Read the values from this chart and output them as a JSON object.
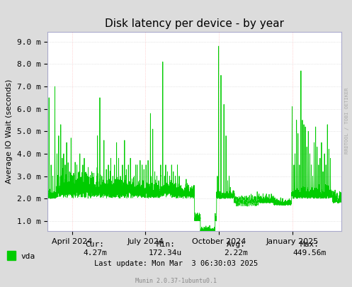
{
  "title": "Disk latency per device - by year",
  "ylabel": "Average IO Wait (seconds)",
  "background_color": "#DCDCDC",
  "plot_bg_color": "#FFFFFF",
  "grid_color_h": "#CCCCCC",
  "grid_color_v": "#FFAAAA",
  "line_color": "#00CC00",
  "yticks": [
    1.0,
    2.0,
    3.0,
    4.0,
    5.0,
    6.0,
    7.0,
    8.0,
    9.0
  ],
  "ytick_labels": [
    "1.0 m",
    "2.0 m",
    "3.0 m",
    "4.0 m",
    "5.0 m",
    "6.0 m",
    "7.0 m",
    "8.0 m",
    "9.0 m"
  ],
  "ylim_lo": 0.55,
  "ylim_hi": 9.45,
  "xtick_labels": [
    "April 2024",
    "July 2024",
    "October 2024",
    "January 2025"
  ],
  "xtick_positions": [
    0.0833,
    0.3333,
    0.5833,
    0.8333
  ],
  "legend_label": "vda",
  "legend_color": "#00CC00",
  "cur_label": "Cur:",
  "cur": "4.27m",
  "min_label": "Min:",
  "min": "172.34u",
  "avg_label": "Avg:",
  "avg": "2.22m",
  "max_label": "Max:",
  "max": "449.56m",
  "last_update": "Last update: Mon Mar  3 06:30:03 2025",
  "rrdtool_text": "RRDTOOL / TOBI OETIKER",
  "munin_text": "Munin 2.0.37-1ubuntu0.1",
  "title_fontsize": 11,
  "axis_fontsize": 8,
  "legend_fontsize": 8,
  "stats_fontsize": 8
}
